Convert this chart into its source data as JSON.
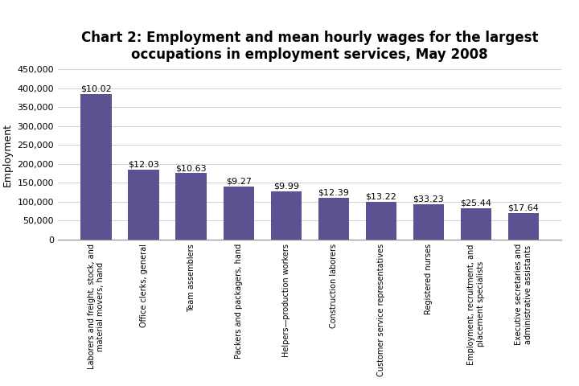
{
  "title": "Chart 2: Employment and mean hourly wages for the largest\noccupations in employment services, May 2008",
  "categories": [
    "Laborers and freight, stock, and\nmaterial movers, hand",
    "Office clerks, general",
    "Team assemblers",
    "Packers and packagers, hand",
    "Helpers—production workers",
    "Construction laborers",
    "Customer service representatives",
    "Registered nurses",
    "Employment, recruitment, and\nplacement specialists",
    "Executive secretaries and\nadministrative assistants"
  ],
  "values": [
    385000,
    185000,
    175000,
    140000,
    128000,
    110000,
    100000,
    93000,
    82000,
    70000
  ],
  "wages": [
    "$10.02",
    "$12.03",
    "$10.63",
    "$9.27",
    "$9.99",
    "$12.39",
    "$13.22",
    "$33.23",
    "$25.44",
    "$17.64"
  ],
  "bar_color": "#5b5291",
  "ylabel": "Employment",
  "ylim": [
    0,
    450000
  ],
  "yticks": [
    0,
    50000,
    100000,
    150000,
    200000,
    250000,
    300000,
    350000,
    400000,
    450000
  ],
  "background_color": "#ffffff",
  "title_fontsize": 12,
  "label_fontsize": 8,
  "ylabel_fontsize": 9,
  "tick_fontsize": 8,
  "xtick_fontsize": 7
}
